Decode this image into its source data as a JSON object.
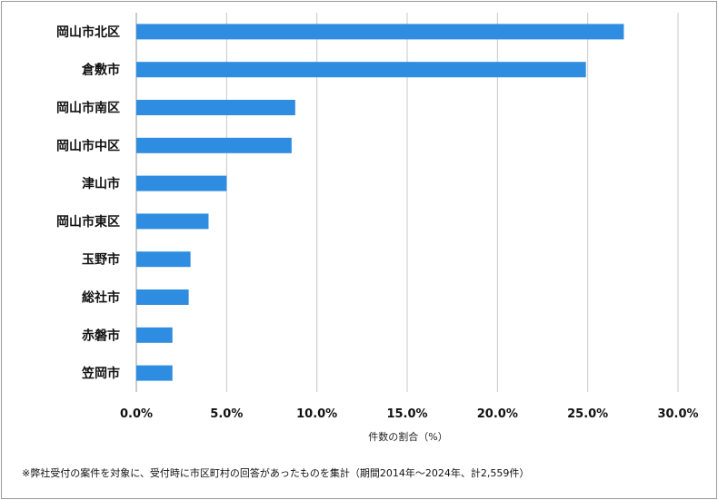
{
  "chart_data": {
    "type": "bar",
    "orientation": "horizontal",
    "categories": [
      "岡山市北区",
      "倉敷市",
      "岡山市南区",
      "岡山市中区",
      "津山市",
      "岡山市東区",
      "玉野市",
      "総社市",
      "赤磐市",
      "笠岡市"
    ],
    "values": [
      27.0,
      24.9,
      8.8,
      8.6,
      5.0,
      4.0,
      3.0,
      2.9,
      2.0,
      2.0
    ],
    "xlabel": "件数の割合（%）",
    "xlim": [
      0,
      30
    ],
    "xticks": [
      0,
      5,
      10,
      15,
      20,
      25,
      30
    ],
    "tick_labels": [
      "0.0%",
      "5.0%",
      "10.0%",
      "15.0%",
      "20.0%",
      "25.0%",
      "30.0%"
    ],
    "grid": "vertical",
    "bar_color": "#2e8de0",
    "grid_color": "#c8c8c8"
  },
  "footnote": "※弊社受付の案件を対象に、受付時に市区町村の回答があったものを集計（期間2014年～2024年、計2,559件）"
}
